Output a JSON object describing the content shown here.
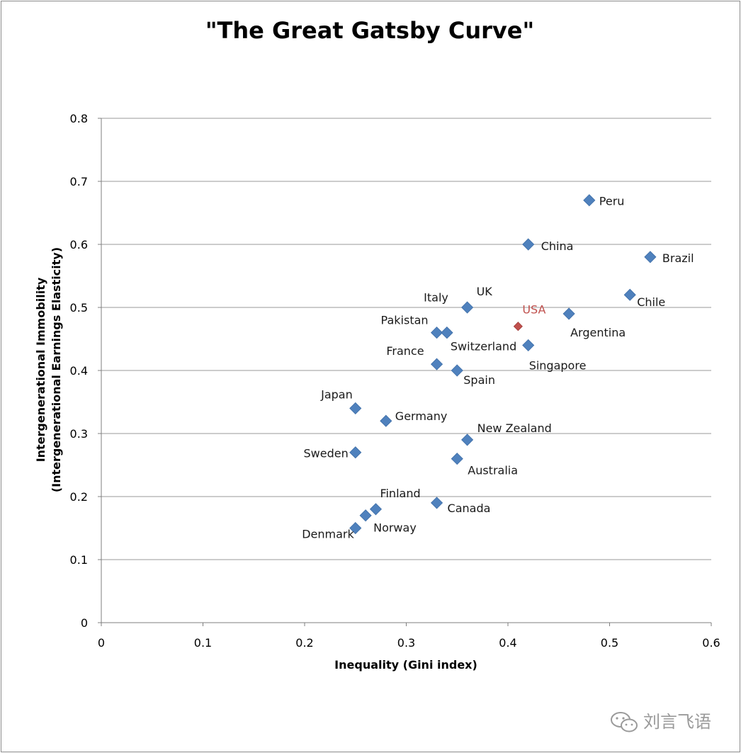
{
  "chart_data": {
    "type": "scatter",
    "title": "\"The Great Gatsby Curve\"",
    "xlabel": "Inequality (Gini index)",
    "ylabel": [
      "Intergenerational Immobility",
      "(Intergenerational Earnings Elasticity)"
    ],
    "xlim": [
      0,
      0.6
    ],
    "ylim": [
      0,
      0.8
    ],
    "xticks": [
      0,
      0.1,
      0.2,
      0.3,
      0.4,
      0.5,
      0.6
    ],
    "xtick_labels": [
      "0",
      "0.1",
      "0.2",
      "0.3",
      "0.4",
      "0.5",
      "0.6"
    ],
    "yticks": [
      0,
      0.1,
      0.2,
      0.3,
      0.4,
      0.5,
      0.6,
      0.7,
      0.8
    ],
    "ytick_labels": [
      "0",
      "0.1",
      "0.2",
      "0.3",
      "0.4",
      "0.5",
      "0.6",
      "0.7",
      "0.8"
    ],
    "grid": "horizontal",
    "marker": "diamond",
    "colors": {
      "default": "#4f81bd",
      "highlight": "#c0504d",
      "gridline": "#9a9a9a"
    },
    "points": [
      {
        "label": "Peru",
        "x": 0.48,
        "y": 0.67
      },
      {
        "label": "China",
        "x": 0.42,
        "y": 0.6
      },
      {
        "label": "Brazil",
        "x": 0.54,
        "y": 0.58
      },
      {
        "label": "Chile",
        "x": 0.52,
        "y": 0.52
      },
      {
        "label": "UK",
        "x": 0.36,
        "y": 0.5
      },
      {
        "label": "Italy",
        "x": 0.34,
        "y": 0.46
      },
      {
        "label": "USA",
        "x": 0.41,
        "y": 0.47,
        "highlight": true
      },
      {
        "label": "Argentina",
        "x": 0.46,
        "y": 0.49
      },
      {
        "label": "Pakistan",
        "x": 0.33,
        "y": 0.46
      },
      {
        "label": "Switzerland",
        "x": 0.34,
        "y": 0.46
      },
      {
        "label": "Singapore",
        "x": 0.42,
        "y": 0.44
      },
      {
        "label": "France",
        "x": 0.33,
        "y": 0.41
      },
      {
        "label": "Spain",
        "x": 0.35,
        "y": 0.4
      },
      {
        "label": "Japan",
        "x": 0.25,
        "y": 0.34
      },
      {
        "label": "Germany",
        "x": 0.28,
        "y": 0.32
      },
      {
        "label": "New Zealand",
        "x": 0.36,
        "y": 0.29
      },
      {
        "label": "Sweden",
        "x": 0.25,
        "y": 0.27
      },
      {
        "label": "Australia",
        "x": 0.35,
        "y": 0.26
      },
      {
        "label": "Finland",
        "x": 0.27,
        "y": 0.18
      },
      {
        "label": "Norway",
        "x": 0.26,
        "y": 0.17
      },
      {
        "label": "Canada",
        "x": 0.33,
        "y": 0.19
      },
      {
        "label": "Denmark",
        "x": 0.25,
        "y": 0.15
      }
    ]
  },
  "watermark": {
    "text": "刘言飞语",
    "icon": "wechat-icon"
  }
}
